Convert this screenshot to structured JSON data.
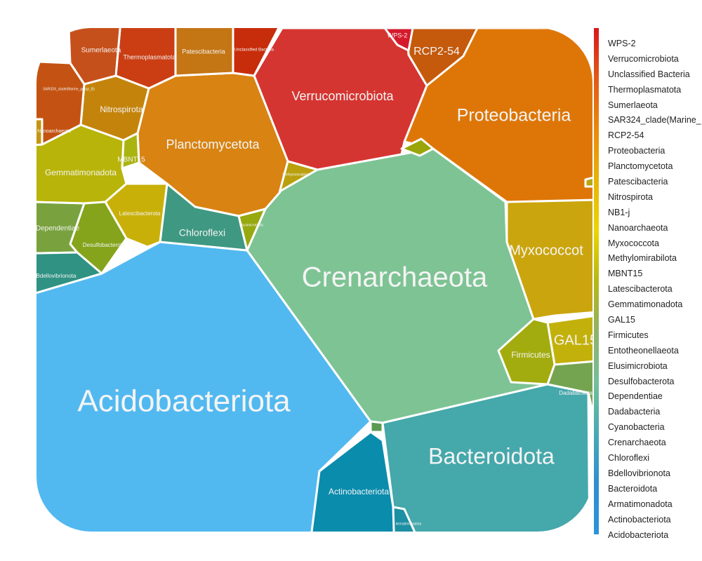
{
  "chart_data": {
    "type": "voronoi-treemap",
    "phyla": [
      "Acidobacteriota",
      "Crenarchaeota",
      "Bacteroidota",
      "Proteobacteria",
      "Verrucomicrobiota",
      "Planctomycetota",
      "Myxococcota",
      "Chloroflexi",
      "Actinobacteriota",
      "Gemmatimonadota",
      "Nitrospirota",
      "GAL15",
      "Firmicutes",
      "RCP2-54",
      "Patescibacteria",
      "Thermoplasmatota",
      "Sumerlaeota",
      "Latescibacterota",
      "Desulfobacterota",
      "Dependentiae",
      "Dadabacteria",
      "Unclassified Bacteria",
      "Bdellovibrionota",
      "MBNT15",
      "SAR324_clade(Marine_group_B)",
      "Nanoarchaeota",
      "Elusimicrobiota",
      "Methylomirabilota",
      "WPS-2",
      "Armatimonadota",
      "Cyanobacteria",
      "Entotheonellaeota",
      "NB1-j"
    ],
    "legend": {
      "items": [
        "WPS-2",
        "Verrucomicrobiota",
        "Unclassified Bacteria",
        "Thermoplasmatota",
        "Sumerlaeota",
        "SAR324_clade(Marine_",
        "RCP2-54",
        "Proteobacteria",
        "Planctomycetota",
        "Patescibacteria",
        "Nitrospirota",
        "NB1-j",
        "Nanoarchaeota",
        "Myxococcota",
        "Methylomirabilota",
        "MBNT15",
        "Latescibacterota",
        "Gemmatimonadota",
        "GAL15",
        "Firmicutes",
        "Entotheonellaeota",
        "Elusimicrobiota",
        "Desulfobacterota",
        "Dependentiae",
        "Dadabacteria",
        "Cyanobacteria",
        "Crenarchaeota",
        "Chloroflexi",
        "Bdellovibrionota",
        "Bacteroidota",
        "Armatimonadota",
        "Actinobacteriota",
        "Acidobacteriota"
      ],
      "placement": "right",
      "colorscale": [
        "#d7191c",
        "#e2591a",
        "#e98a0c",
        "#e8b308",
        "#ebd500",
        "#b5b816",
        "#8fb26a",
        "#73bf9a",
        "#4aa9b4",
        "#2e8fd0",
        "#2b93d9"
      ]
    }
  },
  "cells": {
    "acidobacteriota": {
      "label": "Acidobacteriota",
      "color": "#52b9f0"
    },
    "crenarchaeota": {
      "label": "Crenarchaeota",
      "color": "#7ec394"
    },
    "bacteroidota": {
      "label": "Bacteroidota",
      "color": "#45a8ab"
    },
    "proteobacteria": {
      "label": "Proteobacteria",
      "color": "#de7607"
    },
    "verrucomicrobiota": {
      "label": "Verrucomicrobiota",
      "color": "#d53531"
    },
    "planctomycetota": {
      "label": "Planctomycetota",
      "color": "#d88312"
    },
    "myxococcota": {
      "label": "Myxococcot",
      "color": "#cba50d"
    },
    "chloroflexi": {
      "label": "Chloroflexi",
      "color": "#3f9882"
    },
    "actinobacteriota": {
      "label": "Actinobacteriota",
      "color": "#0a8cad"
    },
    "gemmatimonadota": {
      "label": "Gemmatimonadota",
      "color": "#b8b409"
    },
    "nitrospirota": {
      "label": "Nitrospirota",
      "color": "#c4840c"
    },
    "gal15": {
      "label": "GAL15",
      "color": "#c3b10b"
    },
    "firmicutes": {
      "label": "Firmicutes",
      "color": "#a3ac0e"
    },
    "rcp2_54": {
      "label": "RCP2-54",
      "color": "#c55a0c"
    },
    "patescibacteria": {
      "label": "Patescibacteria",
      "color": "#c47514"
    },
    "thermoplasmatota": {
      "label": "Thermoplasmatota",
      "color": "#cb3e14"
    },
    "sumerlaeota": {
      "label": "Sumerlaeota",
      "color": "#c6501b"
    },
    "latescibacterota": {
      "label": "Latescibacterota",
      "color": "#c9b009"
    },
    "desulfobacterota": {
      "label": "Desulfobacterota",
      "color": "#85a41c"
    },
    "dependentiae": {
      "label": "Dependentiae",
      "color": "#79a23e"
    },
    "dadabacteria": {
      "label": "Dadabacteria",
      "color": "#74a450"
    },
    "unclassified_bacteria": {
      "label": "Unclassified Bacteria",
      "color": "#c72d0b"
    },
    "bdellovibrionota": {
      "label": "Bdellovibrionota",
      "color": "#2f9283"
    },
    "mbnt15": {
      "label": "MBNT15",
      "color": "#aab410"
    },
    "sar324": {
      "label": "SAR324_clade(Marine_group_B)",
      "color": "#c45313"
    },
    "nanoarchaeota": {
      "label": "Nanoarchaeota",
      "color": "#c49611"
    },
    "elusimicrobiota": {
      "label": "Elusimicrobiota",
      "color": "#96a90f"
    },
    "methylomirabilota": {
      "label": "Methylomirabilota",
      "color": "#b9a00c"
    },
    "wps2": {
      "label": "WPS-2",
      "color": "#d51a2c"
    },
    "armatimonadota": {
      "label": "Armatimonadota",
      "color": "#1d8fa3"
    },
    "cyanobacteria": {
      "label": "",
      "color": "#5c9a52"
    },
    "entotheonellaeota": {
      "label": "",
      "color": "#99a508"
    },
    "nb1j": {
      "label": "",
      "color": "#b8a513"
    }
  }
}
